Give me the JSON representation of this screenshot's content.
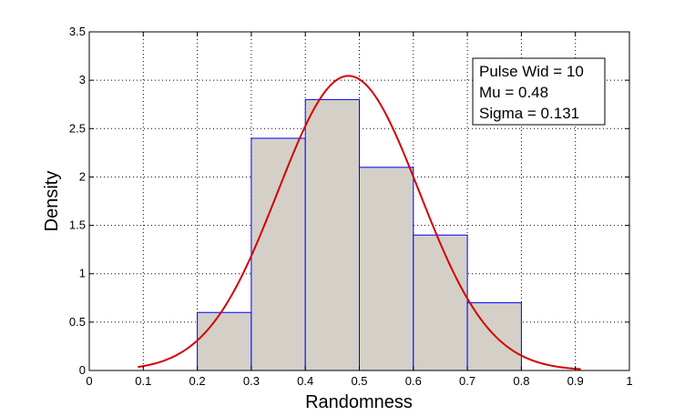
{
  "chart_data": {
    "type": "bar",
    "title": "",
    "xlabel": "Randomness",
    "ylabel": "Density",
    "xlim": [
      0,
      1
    ],
    "ylim": [
      0,
      3.5
    ],
    "xticks": [
      "0",
      "0.1",
      "0.2",
      "0.3",
      "0.4",
      "0.5",
      "0.6",
      "0.7",
      "0.8",
      "0.9",
      "1"
    ],
    "yticks": [
      "0",
      "0.5",
      "1",
      "1.5",
      "2",
      "2.5",
      "3",
      "3.5"
    ],
    "grid": true,
    "bins": [
      {
        "start": 0.2,
        "end": 0.3,
        "density": 0.6
      },
      {
        "start": 0.3,
        "end": 0.4,
        "density": 2.4
      },
      {
        "start": 0.4,
        "end": 0.5,
        "density": 2.8
      },
      {
        "start": 0.5,
        "end": 0.6,
        "density": 2.1
      },
      {
        "start": 0.6,
        "end": 0.7,
        "density": 1.4
      },
      {
        "start": 0.7,
        "end": 0.8,
        "density": 0.7
      }
    ],
    "fit": {
      "type": "normal",
      "mu": 0.48,
      "sigma": 0.131,
      "x_range": [
        0.09,
        0.91
      ]
    },
    "legend": {
      "position": "top-right",
      "lines": [
        "Pulse Wid = 10",
        "Mu = 0.48",
        "Sigma = 0.131"
      ]
    },
    "colors": {
      "bar_fill": "#d4d0c8",
      "bar_edge": "#0000ff",
      "fit_line": "#d40000",
      "grid": "#000000"
    }
  }
}
